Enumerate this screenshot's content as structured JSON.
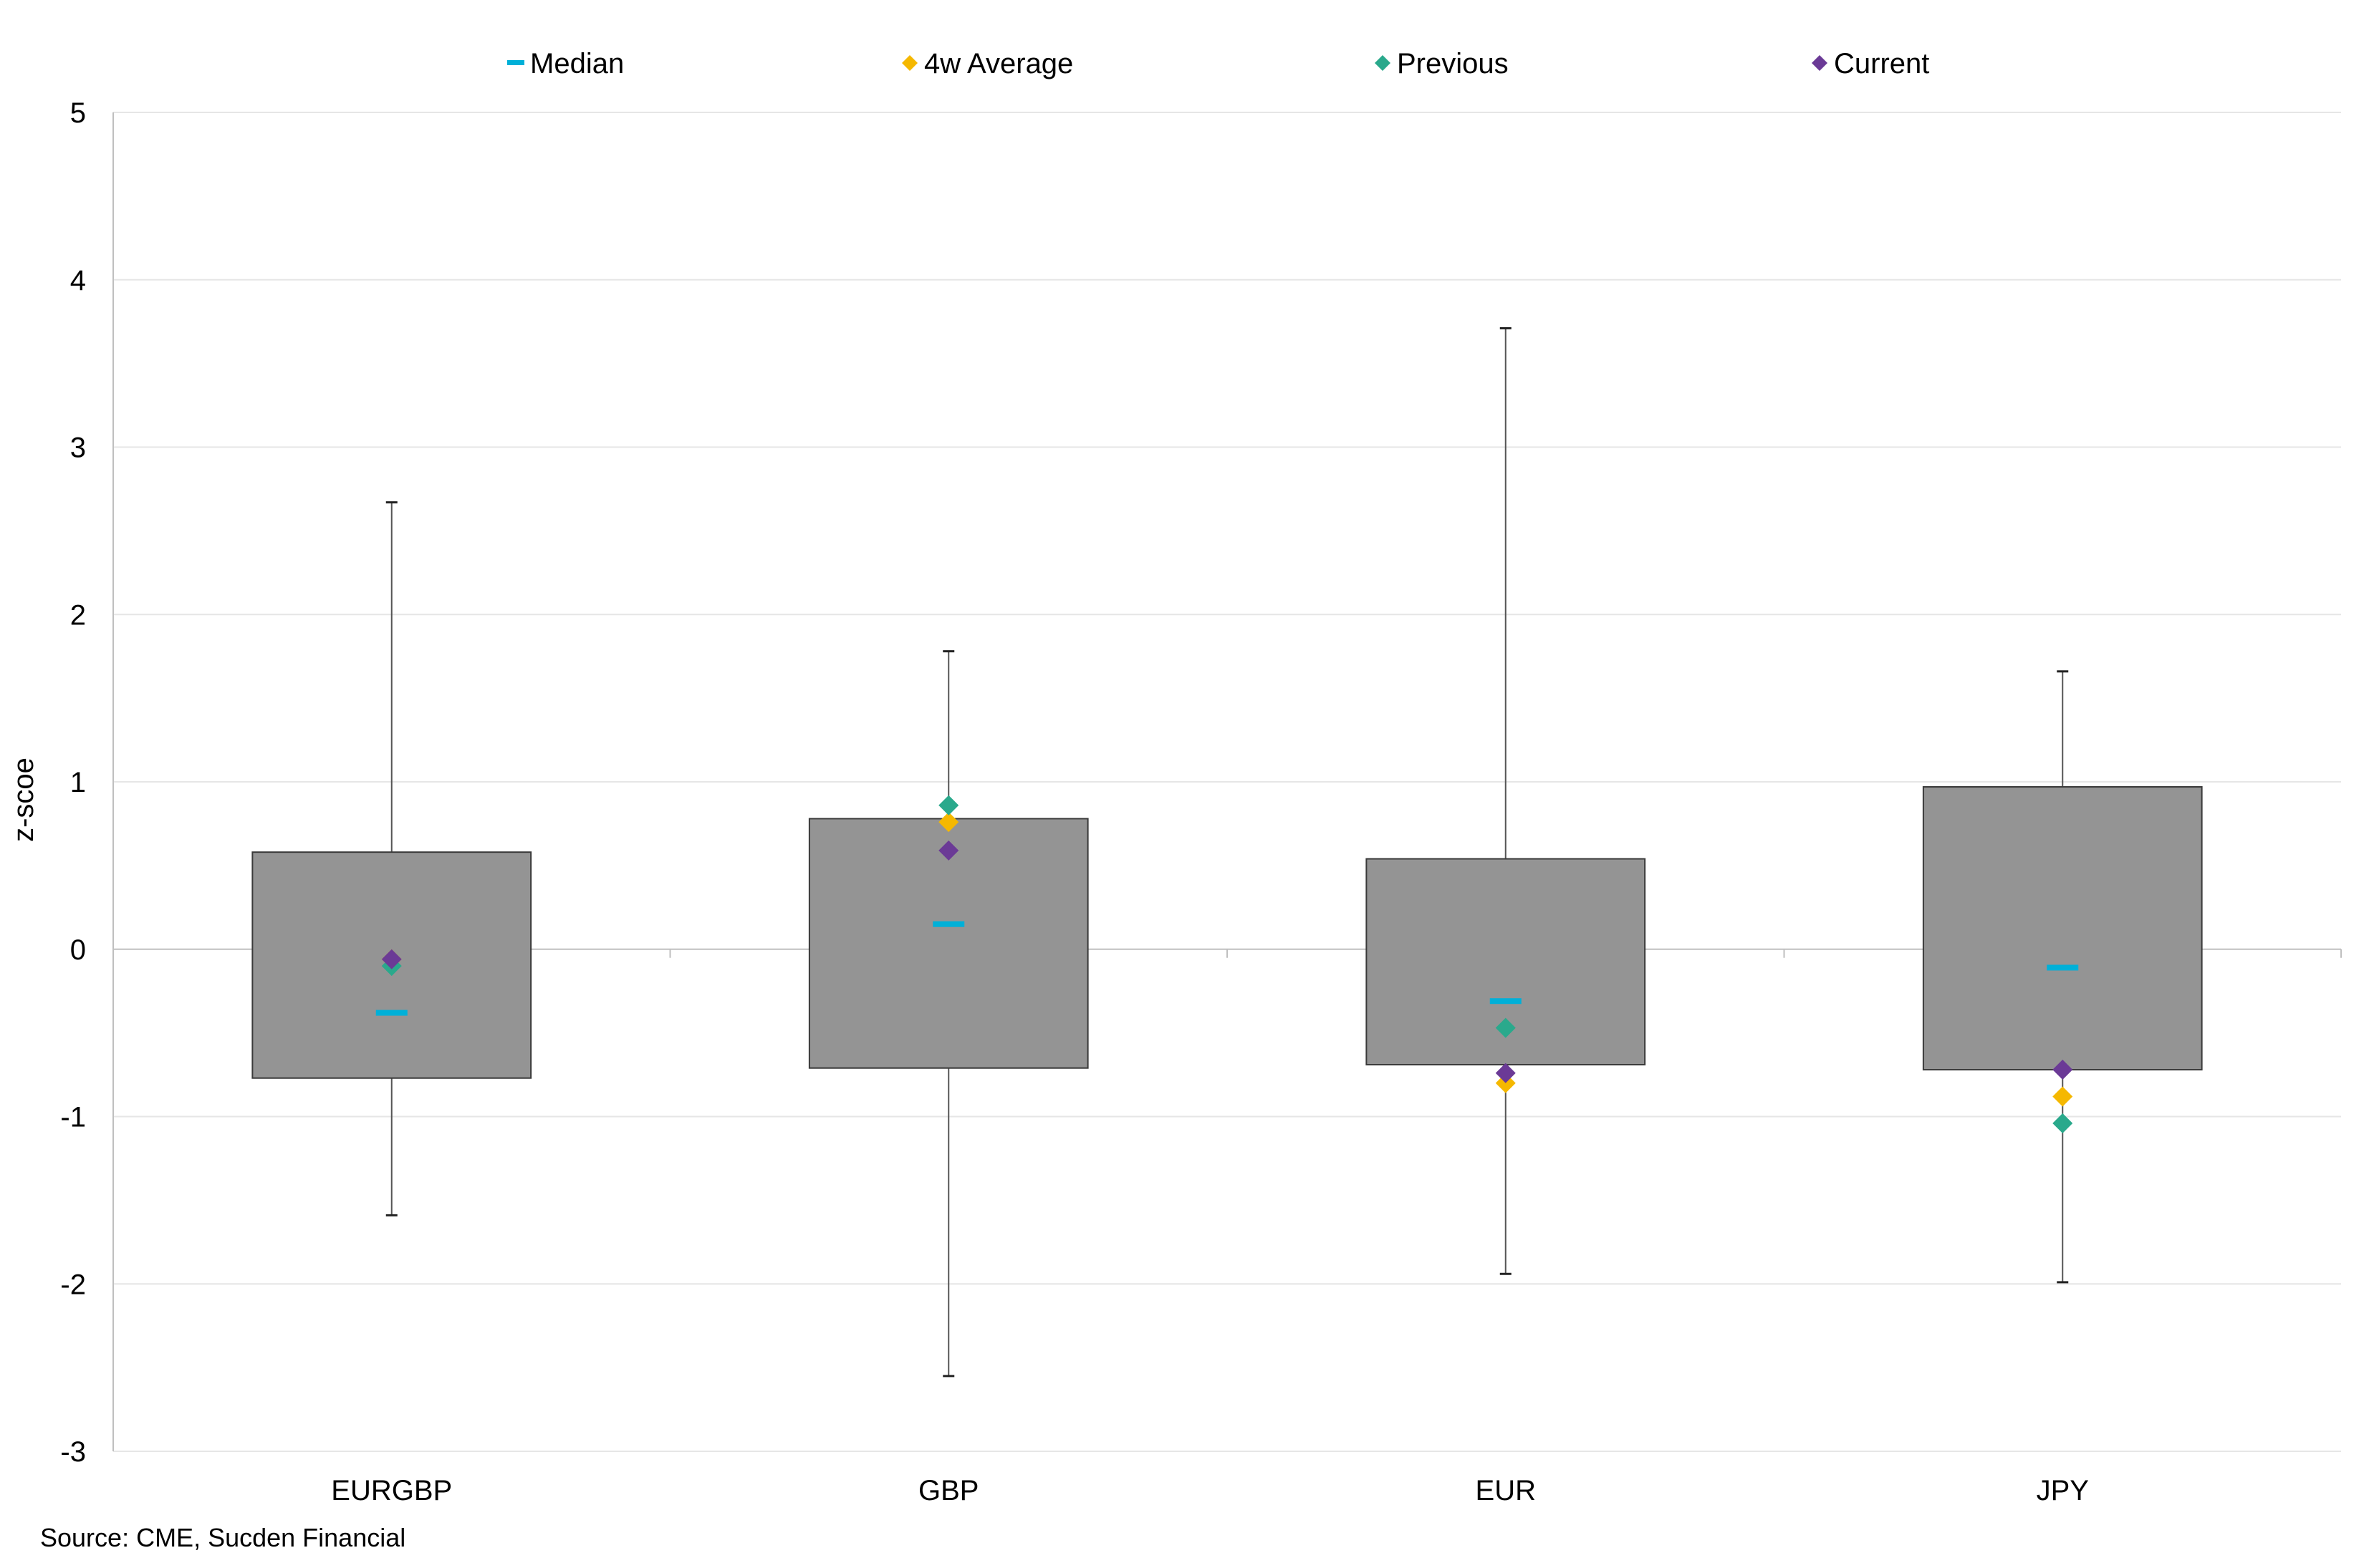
{
  "chart_data": {
    "type": "boxplot",
    "categories": [
      "EURGBP",
      "GBP",
      "EUR",
      "JPY"
    ],
    "ylabel": "z-scoe",
    "xlabel": "",
    "ylim": [
      -3,
      5
    ],
    "yticks": [
      5,
      4,
      3,
      2,
      1,
      0,
      -1,
      -2,
      -3
    ],
    "grid": true,
    "legend_position": "top",
    "boxes": [
      {
        "category": "EURGBP",
        "min": -1.59,
        "q1": -0.77,
        "q3": 0.58,
        "max": 2.67
      },
      {
        "category": "GBP",
        "min": -2.55,
        "q1": -0.71,
        "q3": 0.78,
        "max": 1.78
      },
      {
        "category": "EUR",
        "min": -1.94,
        "q1": -0.69,
        "q3": 0.54,
        "max": 3.71
      },
      {
        "category": "JPY",
        "min": -1.99,
        "q1": -0.72,
        "q3": 0.97,
        "max": 1.66
      }
    ],
    "series": [
      {
        "name": "Median",
        "marker": "dash",
        "color": "#00b0d8",
        "values": [
          -0.38,
          0.15,
          -0.31,
          -0.11
        ]
      },
      {
        "name": "4w Average",
        "marker": "diamond",
        "color": "#f5b800",
        "values": [
          -0.06,
          0.76,
          -0.8,
          -0.88
        ]
      },
      {
        "name": "Previous",
        "marker": "diamond",
        "color": "#2aa98c",
        "values": [
          -0.1,
          0.86,
          -0.47,
          -1.04
        ]
      },
      {
        "name": "Current",
        "marker": "diamond",
        "color": "#6b3a96",
        "values": [
          -0.06,
          0.59,
          -0.74,
          -0.72
        ]
      }
    ],
    "colors": {
      "box_fill": "#949494",
      "box_stroke": "#3a3a3a",
      "whisker": "#555555",
      "grid": "#e6e6e6",
      "axis": "#bfbfbf"
    }
  },
  "source": "Source: CME, Sucden Financial"
}
